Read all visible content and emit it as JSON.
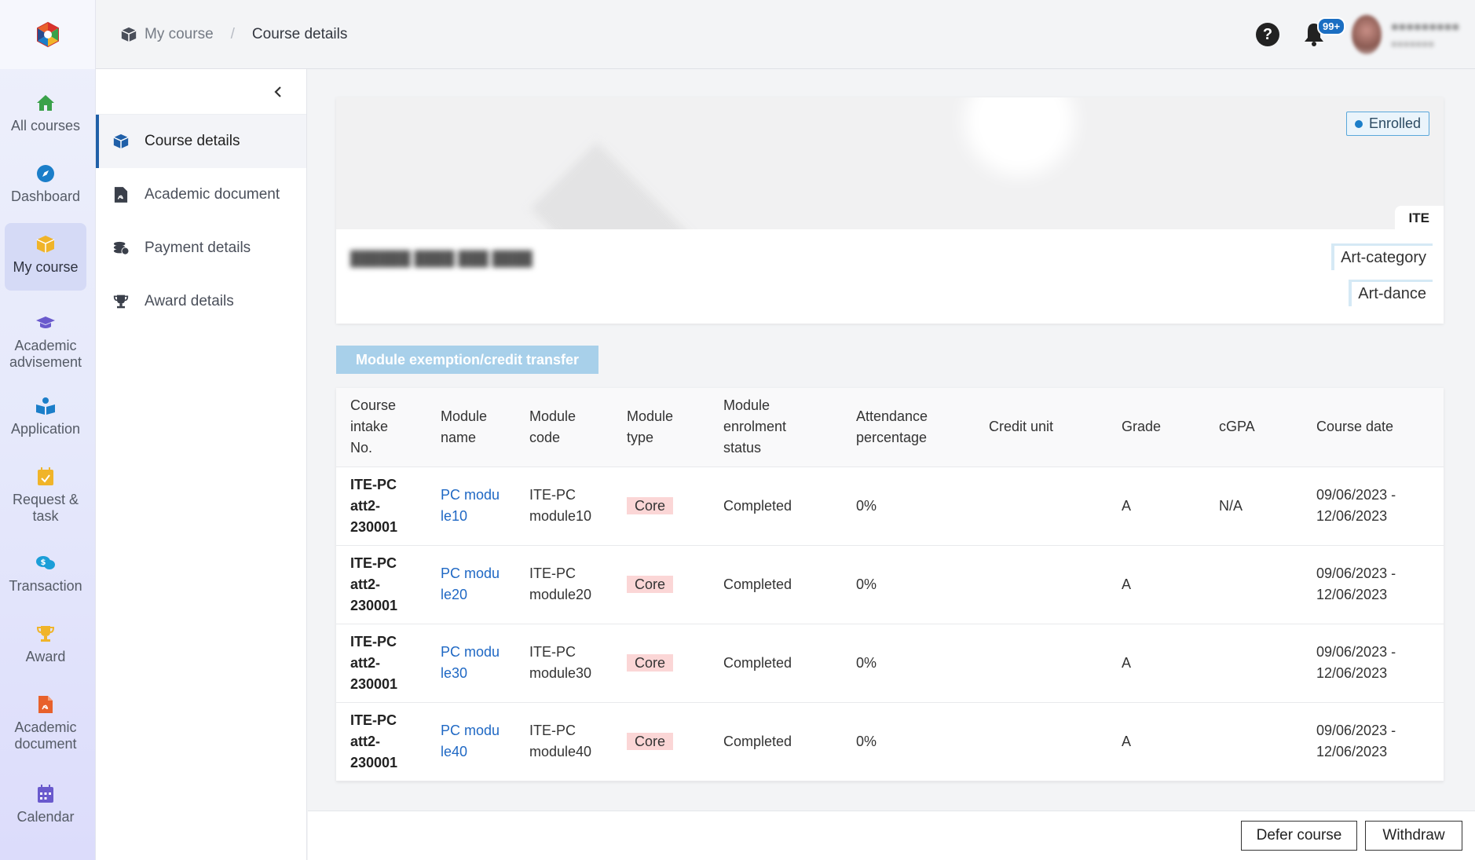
{
  "rail": {
    "items": [
      {
        "label": "All courses",
        "icon": "home-icon",
        "color": "#3aa14a"
      },
      {
        "label": "Dashboard",
        "icon": "compass-icon",
        "color": "#1b7ec9"
      },
      {
        "label": "My course",
        "icon": "box-icon",
        "color": "#f0b429"
      },
      {
        "label": "Academic advisement",
        "icon": "graduation-cap-icon",
        "color": "#6a5acd"
      },
      {
        "label": "Application",
        "icon": "reader-icon",
        "color": "#1b7ec9"
      },
      {
        "label": "Request & task",
        "icon": "calendar-check-icon",
        "color": "#f0b429"
      },
      {
        "label": "Transaction",
        "icon": "chat-dollar-icon",
        "color": "#1b9ed8"
      },
      {
        "label": "Award",
        "icon": "trophy-icon",
        "color": "#f0b429"
      },
      {
        "label": "Academic document",
        "icon": "pdf-icon",
        "color": "#e8612c"
      },
      {
        "label": "Calendar",
        "icon": "calendar-icon",
        "color": "#6a5acd"
      }
    ]
  },
  "breadcrumb": {
    "parent": "My course",
    "current": "Course details"
  },
  "header": {
    "notifications_badge": "99+"
  },
  "subnav": {
    "items": [
      "Course details",
      "Academic document",
      "Payment details",
      "Award details"
    ]
  },
  "course": {
    "status": "Enrolled",
    "institution_tag": "ITE",
    "categories": [
      "Art-category",
      "Art-dance"
    ]
  },
  "actions": {
    "exemption_button": "Module exemption/credit transfer",
    "defer_button": "Defer course",
    "withdraw_button": "Withdraw"
  },
  "table": {
    "headers": [
      "Course intake No.",
      "Module name",
      "Module code",
      "Module type",
      "Module enrolment status",
      "Attendance percentage",
      "Credit unit",
      "Grade",
      "cGPA",
      "Course date"
    ],
    "rows": [
      {
        "intake": "ITE-PC att2-230001",
        "name": "PC module10",
        "code": "ITE-PC module10",
        "type": "Core",
        "status": "Completed",
        "attendance": "0%",
        "credit": "",
        "grade": "A",
        "cgpa": "N/A",
        "date": "09/06/2023 - 12/06/2023"
      },
      {
        "intake": "ITE-PC att2-230001",
        "name": "PC module20",
        "code": "ITE-PC module20",
        "type": "Core",
        "status": "Completed",
        "attendance": "0%",
        "credit": "",
        "grade": "A",
        "cgpa": "",
        "date": "09/06/2023 - 12/06/2023"
      },
      {
        "intake": "ITE-PC att2-230001",
        "name": "PC module30",
        "code": "ITE-PC module30",
        "type": "Core",
        "status": "Completed",
        "attendance": "0%",
        "credit": "",
        "grade": "A",
        "cgpa": "",
        "date": "09/06/2023 - 12/06/2023"
      },
      {
        "intake": "ITE-PC att2-230001",
        "name": "PC module40",
        "code": "ITE-PC module40",
        "type": "Core",
        "status": "Completed",
        "attendance": "0%",
        "credit": "",
        "grade": "A",
        "cgpa": "",
        "date": "09/06/2023 - 12/06/2023"
      }
    ]
  }
}
